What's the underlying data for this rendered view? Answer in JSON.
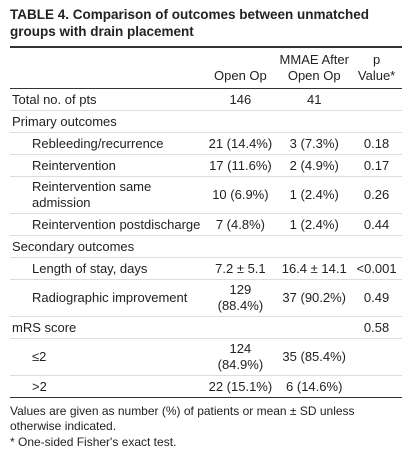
{
  "title": "TABLE 4. Comparison of outcomes between unmatched groups with drain placement",
  "columns": {
    "open": "Open Op",
    "mmae": "MMAE After Open Op",
    "p": "p Value*"
  },
  "rows": [
    {
      "label": "Total no. of pts",
      "open": "146",
      "mmae": "41"
    },
    {
      "label": "Primary outcomes",
      "items": [
        {
          "label": "Rebleeding/recurrence",
          "open": "21 (14.4%)",
          "mmae": "3 (7.3%)",
          "p": "0.18"
        },
        {
          "label": "Reintervention",
          "open": "17 (11.6%)",
          "mmae": "2 (4.9%)",
          "p": "0.17"
        },
        {
          "label": "Reintervention same admission",
          "open": "10 (6.9%)",
          "mmae": "1 (2.4%)",
          "p": "0.26"
        },
        {
          "label": "Reintervention postdischarge",
          "open": "7 (4.8%)",
          "mmae": "1 (2.4%)",
          "p": "0.44"
        }
      ]
    },
    {
      "label": "Secondary outcomes",
      "items": [
        {
          "label": "Length of stay, days",
          "open": "7.2 ± 5.1",
          "mmae": "16.4 ± 14.1",
          "p": "<0.001"
        },
        {
          "label": "Radiographic improvement",
          "open": "129 (88.4%)",
          "mmae": "37 (90.2%)",
          "p": "0.49"
        }
      ]
    },
    {
      "label": "mRS score",
      "p": "0.58",
      "items": [
        {
          "label": "≤2",
          "open": "124 (84.9%)",
          "mmae": "35 (85.4%)"
        },
        {
          "label": ">2",
          "open": "22 (15.1%)",
          "mmae": "6 (14.6%)"
        }
      ]
    }
  ],
  "footnotes": [
    "Values are given as number (%) of patients or mean ± SD unless otherwise indicated.",
    "* One-sided Fisher's exact test."
  ]
}
